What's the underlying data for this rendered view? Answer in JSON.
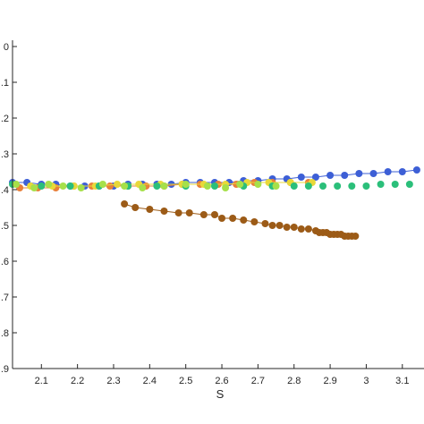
{
  "chart_data": {
    "type": "scatter",
    "xlabel": "S",
    "ylabel": "",
    "xlim": [
      2.02,
      3.16
    ],
    "ylim": [
      0,
      9
    ],
    "y_reversed": true,
    "grid": false,
    "x_ticks": [
      2.1,
      2.2,
      2.3,
      2.4,
      2.5,
      2.6,
      2.7,
      2.8,
      2.9,
      3,
      3.1
    ],
    "x_tick_labels": [
      "2.1",
      "2.2",
      "2.3",
      "2.4",
      "2.5",
      "2.6",
      "2.7",
      "2.8",
      "2.9",
      "3",
      "3.1"
    ],
    "y_ticks": [
      0,
      1,
      2,
      3,
      4,
      5,
      6,
      7,
      8,
      9
    ],
    "y_tick_labels": [
      "0",
      ".1",
      ".2",
      ".3",
      ".4",
      ".5",
      ".6",
      ".7",
      ".8",
      ".9"
    ],
    "series": [
      {
        "color": "#3d5fd6",
        "connected": true,
        "x": [
          2.02,
          2.06,
          2.1,
          2.14,
          2.18,
          2.22,
          2.26,
          2.3,
          2.34,
          2.38,
          2.42,
          2.46,
          2.5,
          2.54,
          2.58,
          2.62,
          2.66,
          2.7,
          2.74,
          2.78,
          2.82,
          2.86,
          2.9,
          2.94,
          2.98,
          3.02,
          3.06,
          3.1,
          3.14
        ],
        "y": [
          3.8,
          3.8,
          3.85,
          3.85,
          3.9,
          3.9,
          3.9,
          3.9,
          3.85,
          3.85,
          3.85,
          3.85,
          3.8,
          3.8,
          3.8,
          3.8,
          3.75,
          3.75,
          3.7,
          3.7,
          3.65,
          3.65,
          3.6,
          3.6,
          3.55,
          3.55,
          3.5,
          3.5,
          3.45
        ]
      },
      {
        "color": "#e8803a",
        "connected": true,
        "x": [
          2.04,
          2.09,
          2.14,
          2.19,
          2.24,
          2.29,
          2.34,
          2.39,
          2.44,
          2.49,
          2.54,
          2.59,
          2.64,
          2.69,
          2.74,
          2.79,
          2.84
        ],
        "y": [
          3.95,
          3.95,
          3.95,
          3.9,
          3.9,
          3.9,
          3.9,
          3.9,
          3.9,
          3.85,
          3.85,
          3.85,
          3.85,
          3.8,
          3.8,
          3.8,
          3.8
        ]
      },
      {
        "color": "#e8d83a",
        "connected": true,
        "x": [
          2.07,
          2.13,
          2.19,
          2.25,
          2.31,
          2.37,
          2.43,
          2.49,
          2.55,
          2.61,
          2.67,
          2.73,
          2.79,
          2.85
        ],
        "y": [
          3.9,
          3.9,
          3.9,
          3.9,
          3.85,
          3.85,
          3.85,
          3.85,
          3.85,
          3.85,
          3.8,
          3.8,
          3.8,
          3.8
        ]
      },
      {
        "color": "#2bbf7a",
        "connected": false,
        "x": [
          2.02,
          2.1,
          2.18,
          2.26,
          2.34,
          2.42,
          2.5,
          2.58,
          2.66,
          2.74,
          2.8,
          2.84,
          2.88,
          2.92,
          2.96,
          3.0,
          3.04,
          3.08,
          3.12
        ],
        "y": [
          3.85,
          3.9,
          3.9,
          3.9,
          3.9,
          3.9,
          3.9,
          3.9,
          3.9,
          3.9,
          3.9,
          3.9,
          3.9,
          3.9,
          3.9,
          3.9,
          3.85,
          3.85,
          3.85
        ]
      },
      {
        "color": "#a6e04a",
        "connected": false,
        "x": [
          2.03,
          2.08,
          2.12,
          2.16,
          2.21,
          2.27,
          2.33,
          2.38,
          2.44,
          2.5,
          2.56,
          2.61,
          2.65,
          2.7,
          2.75
        ],
        "y": [
          3.85,
          3.95,
          3.85,
          3.9,
          3.95,
          3.85,
          3.9,
          3.95,
          3.9,
          3.85,
          3.9,
          3.95,
          3.85,
          3.85,
          3.9
        ]
      },
      {
        "color": "#9c5b17",
        "connected": true,
        "x": [
          2.33,
          2.36,
          2.4,
          2.44,
          2.48,
          2.51,
          2.55,
          2.58,
          2.6,
          2.63,
          2.66,
          2.69,
          2.72,
          2.74,
          2.76,
          2.78,
          2.8,
          2.82,
          2.84,
          2.86,
          2.87,
          2.88,
          2.89,
          2.9,
          2.91,
          2.92,
          2.93,
          2.94,
          2.95,
          2.96,
          2.97
        ],
        "y": [
          4.4,
          4.5,
          4.55,
          4.6,
          4.65,
          4.65,
          4.7,
          4.7,
          4.8,
          4.8,
          4.85,
          4.9,
          4.95,
          5.0,
          5.0,
          5.05,
          5.05,
          5.1,
          5.1,
          5.15,
          5.2,
          5.2,
          5.2,
          5.25,
          5.25,
          5.25,
          5.25,
          5.3,
          5.3,
          5.3,
          5.3
        ]
      }
    ]
  }
}
